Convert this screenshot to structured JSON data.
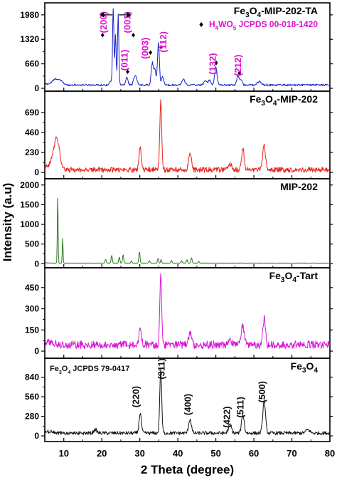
{
  "chart_data": {
    "type": "line",
    "xlabel": "2 Theta (degree)",
    "ylabel": "Intensity (a.u)",
    "xlim": [
      5,
      80
    ],
    "xticks": [
      10,
      20,
      30,
      40,
      50,
      60,
      70,
      80
    ],
    "grid": false,
    "panels": [
      {
        "name": "Fe3O4-MIP-202-TA",
        "color": "#1a22c8",
        "ylim": [
          0,
          2150
        ],
        "yticks": [
          0,
          660,
          1320,
          1980
        ],
        "title": {
          "main": "Fe",
          "sub1": "3",
          "mid": "O",
          "sub2": "4",
          "tail": "-MIP-202-TA"
        },
        "legend": {
          "marker": "♦",
          "main": "H",
          "sub1": "4",
          "mid": "WO",
          "sub2": "5",
          "tail": " JCPDS 00-018-1420",
          "color": "#e010d0"
        },
        "baseline": 90,
        "noise": 25,
        "peaks": [
          [
            8.0,
            160,
            0.9
          ],
          [
            9.5,
            60,
            0.5
          ],
          [
            22.5,
            110,
            0.35
          ],
          [
            23.0,
            2050,
            0.17
          ],
          [
            23.6,
            1350,
            0.17
          ],
          [
            24.3,
            1900,
            0.17
          ],
          [
            26.6,
            200,
            0.3
          ],
          [
            28.8,
            250,
            0.4
          ],
          [
            33.3,
            600,
            0.3
          ],
          [
            34.0,
            380,
            0.25
          ],
          [
            34.9,
            1120,
            0.25
          ],
          [
            36.0,
            220,
            0.3
          ],
          [
            41.5,
            150,
            0.4
          ],
          [
            47.2,
            120,
            0.35
          ],
          [
            48.3,
            130,
            0.35
          ],
          [
            50.0,
            480,
            0.3
          ],
          [
            55.8,
            250,
            0.3
          ],
          [
            56.6,
            140,
            0.3
          ],
          [
            61.5,
            90,
            0.5
          ]
        ],
        "annotations": [
          {
            "text": "(200)",
            "x": 21.3,
            "ycount": 1780,
            "color": "#e010d0"
          },
          {
            "text": "(001)",
            "x": 27.5,
            "ycount": 1780,
            "color": "#e010d0"
          },
          {
            "text": "(011)",
            "x": 26.8,
            "ycount": 760,
            "color": "#e010d0"
          },
          {
            "text": "(003)",
            "x": 32.2,
            "ycount": 1080,
            "color": "#e010d0"
          },
          {
            "text": "(112)",
            "x": 37.0,
            "ycount": 1250,
            "color": "#e010d0"
          },
          {
            "text": "(132)",
            "x": 50.0,
            "ycount": 660,
            "color": "#e010d0"
          },
          {
            "text": "(212)",
            "x": 56.6,
            "ycount": 620,
            "color": "#e010d0"
          }
        ],
        "markers": [
          {
            "x": 20.2,
            "ycount": 1370
          },
          {
            "x": 26.8,
            "ycount": 380
          },
          {
            "x": 28.3,
            "ycount": 1370
          },
          {
            "x": 32.8,
            "ycount": 900
          },
          {
            "x": 35.6,
            "ycount": 1050
          },
          {
            "x": 50.1,
            "ycount": 620
          },
          {
            "x": 56.2,
            "ycount": 350
          }
        ]
      },
      {
        "name": "Fe3O4-MIP-202",
        "color": "#e8221a",
        "ylim": [
          -40,
          870
        ],
        "yticks": [
          0,
          230,
          460,
          690
        ],
        "title": {
          "main": "Fe",
          "sub1": "3",
          "mid": "O",
          "sub2": "4",
          "tail": "-MIP-202"
        },
        "baseline": 30,
        "noise": 30,
        "peaks": [
          [
            8.2,
            350,
            0.7
          ],
          [
            7.0,
            80,
            0.6
          ],
          [
            30.1,
            260,
            0.3
          ],
          [
            35.5,
            800,
            0.25
          ],
          [
            43.2,
            190,
            0.35
          ],
          [
            53.7,
            70,
            0.4
          ],
          [
            57.1,
            240,
            0.35
          ],
          [
            62.7,
            280,
            0.35
          ]
        ],
        "annotations": [],
        "markers": []
      },
      {
        "name": "MIP-202",
        "color": "#2a7a1e",
        "ylim": [
          -30,
          2050
        ],
        "yticks": [
          0,
          500,
          1000,
          1500,
          2000
        ],
        "title": {
          "main": "MIP-202",
          "sub1": "",
          "mid": "",
          "sub2": "",
          "tail": ""
        },
        "baseline": 15,
        "noise": 6,
        "peaks": [
          [
            8.4,
            1780,
            0.1
          ],
          [
            9.7,
            640,
            0.1
          ],
          [
            21.0,
            100,
            0.15
          ],
          [
            22.6,
            200,
            0.15
          ],
          [
            24.6,
            160,
            0.15
          ],
          [
            25.6,
            210,
            0.15
          ],
          [
            27.8,
            60,
            0.15
          ],
          [
            29.9,
            290,
            0.15
          ],
          [
            32.5,
            70,
            0.15
          ],
          [
            34.8,
            120,
            0.15
          ],
          [
            35.6,
            90,
            0.15
          ],
          [
            38.3,
            70,
            0.15
          ],
          [
            41.0,
            60,
            0.15
          ],
          [
            42.4,
            90,
            0.15
          ],
          [
            43.6,
            140,
            0.15
          ],
          [
            45.5,
            40,
            0.15
          ]
        ],
        "annotations": [],
        "markers": []
      },
      {
        "name": "Fe3O4-Tart",
        "color": "#d818d8",
        "ylim": [
          -30,
          560
        ],
        "yticks": [
          0,
          150,
          300,
          450
        ],
        "title": {
          "main": "Fe",
          "sub1": "3",
          "mid": "O",
          "sub2": "4",
          "tail": "-Tart"
        },
        "baseline": 45,
        "noise": 28,
        "peaks": [
          [
            30.1,
            120,
            0.3
          ],
          [
            35.5,
            500,
            0.25
          ],
          [
            43.2,
            80,
            0.35
          ],
          [
            53.7,
            40,
            0.4
          ],
          [
            57.1,
            140,
            0.35
          ],
          [
            62.7,
            190,
            0.35
          ]
        ],
        "annotations": [],
        "markers": []
      },
      {
        "name": "Fe3O4",
        "color": "#111111",
        "ylim": [
          -40,
          1050
        ],
        "yticks": [
          0,
          280,
          560,
          840
        ],
        "title": {
          "main": "Fe",
          "sub1": "3",
          "mid": "O",
          "sub2": "4",
          "tail": ""
        },
        "legend": {
          "marker": "",
          "main": "Fe",
          "sub1": "3",
          "mid": "O",
          "sub2": "4",
          "tail": " JCPDS 79-0417",
          "color": "#111111"
        },
        "baseline": 40,
        "noise": 25,
        "peaks": [
          [
            18.3,
            50,
            0.4
          ],
          [
            30.1,
            290,
            0.3
          ],
          [
            35.5,
            920,
            0.25
          ],
          [
            43.2,
            200,
            0.35
          ],
          [
            53.7,
            120,
            0.4
          ],
          [
            57.1,
            260,
            0.35
          ],
          [
            62.7,
            460,
            0.35
          ],
          [
            74.2,
            50,
            0.5
          ]
        ],
        "annotations": [
          {
            "text": "(220)",
            "x": 29.8,
            "ycount": 560,
            "color": "#111111"
          },
          {
            "text": "(311)",
            "x": 36.5,
            "ycount": 960,
            "color": "#111111"
          },
          {
            "text": "(400)",
            "x": 43.4,
            "ycount": 450,
            "color": "#111111"
          },
          {
            "text": "(422)",
            "x": 53.7,
            "ycount": 270,
            "color": "#111111"
          },
          {
            "text": "(511)",
            "x": 57.3,
            "ycount": 410,
            "color": "#111111"
          },
          {
            "text": "(500)",
            "x": 63.0,
            "ycount": 630,
            "color": "#111111"
          }
        ],
        "markers": []
      }
    ]
  }
}
